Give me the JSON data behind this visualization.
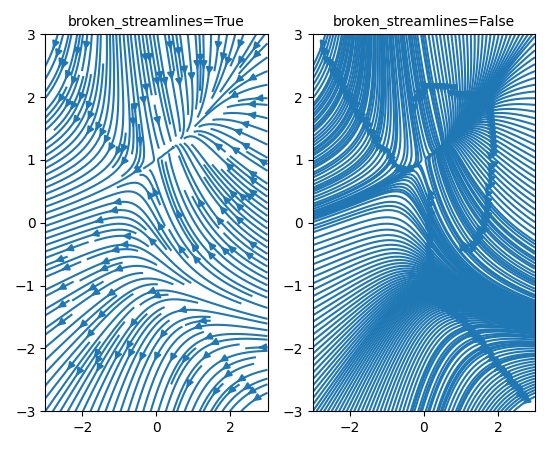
{
  "title_left": "broken_streamlines=True",
  "title_right": "broken_streamlines=False",
  "xlim": [
    -3,
    3
  ],
  "ylim": [
    -3,
    3
  ],
  "grid_points": 100,
  "density": 2,
  "color": "#1f77b4",
  "figsize": [
    5.5,
    4.5
  ],
  "dpi": 100
}
